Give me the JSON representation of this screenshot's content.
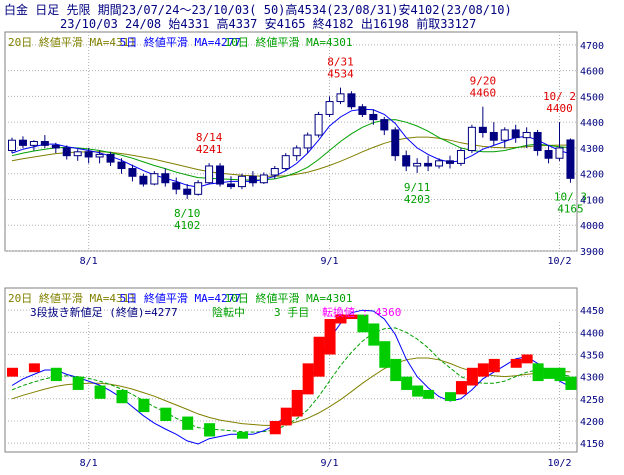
{
  "header": {
    "line1": "白金 日足 先限 期間23/07/24～23/10/03( 50)高4534(23/08/31)安4102(23/08/10)",
    "line2": "23/10/03 24/08 始4331 高4337 安4165 終4182 出16198 前取33127"
  },
  "colors": {
    "background": "#ffffff",
    "text": "#000080",
    "grid": "#b0b0b0",
    "up_candle": "#ffffff",
    "down_candle": "#000080",
    "ma_short": "#0000ff",
    "ma_mid": "#00a000",
    "ma_long": "#808000",
    "annot_high": "#e00000",
    "annot_low": "#00a000",
    "kagi_up": "#ff0000",
    "kagi_down": "#00cc00",
    "turnover": "#ff00ff"
  },
  "chart_data": [
    {
      "type": "candlestick",
      "legend": [
        {
          "label": "20日 終値平滑 MA=4311",
          "color": "#808000"
        },
        {
          "label": "5日 終値平滑 MA=4277",
          "color": "#0000ff"
        },
        {
          "label": "10日 終値平滑 MA=4301",
          "color": "#00a000"
        }
      ],
      "x_ticks": [
        {
          "label": "8/1",
          "index": 7
        },
        {
          "label": "9/1",
          "index": 29
        },
        {
          "label": "10/2",
          "index": 50
        }
      ],
      "ylim": [
        3900,
        4750
      ],
      "y_ticks": [
        3900,
        4000,
        4100,
        4200,
        4300,
        4400,
        4500,
        4600,
        4700
      ],
      "ohlc": [
        [
          4290,
          4340,
          4280,
          4330
        ],
        [
          4330,
          4345,
          4300,
          4310
        ],
        [
          4310,
          4330,
          4290,
          4325
        ],
        [
          4325,
          4350,
          4300,
          4310
        ],
        [
          4310,
          4320,
          4280,
          4300
        ],
        [
          4300,
          4310,
          4255,
          4270
        ],
        [
          4270,
          4295,
          4250,
          4285
        ],
        [
          4285,
          4300,
          4240,
          4265
        ],
        [
          4265,
          4290,
          4240,
          4275
        ],
        [
          4275,
          4285,
          4230,
          4245
        ],
        [
          4245,
          4260,
          4200,
          4220
        ],
        [
          4220,
          4235,
          4170,
          4190
        ],
        [
          4190,
          4200,
          4150,
          4160
        ],
        [
          4160,
          4210,
          4155,
          4200
        ],
        [
          4200,
          4220,
          4150,
          4165
        ],
        [
          4165,
          4185,
          4120,
          4140
        ],
        [
          4140,
          4160,
          4102,
          4120
        ],
        [
          4120,
          4175,
          4115,
          4165
        ],
        [
          4165,
          4241,
          4160,
          4230
        ],
        [
          4230,
          4241,
          4150,
          4160
        ],
        [
          4160,
          4190,
          4140,
          4150
        ],
        [
          4150,
          4200,
          4140,
          4190
        ],
        [
          4190,
          4210,
          4150,
          4165
        ],
        [
          4165,
          4205,
          4160,
          4195
        ],
        [
          4195,
          4230,
          4180,
          4220
        ],
        [
          4220,
          4280,
          4210,
          4270
        ],
        [
          4270,
          4310,
          4250,
          4300
        ],
        [
          4300,
          4360,
          4280,
          4350
        ],
        [
          4350,
          4440,
          4340,
          4430
        ],
        [
          4430,
          4500,
          4420,
          4480
        ],
        [
          4480,
          4534,
          4470,
          4510
        ],
        [
          4510,
          4520,
          4450,
          4460
        ],
        [
          4460,
          4470,
          4420,
          4430
        ],
        [
          4430,
          4450,
          4390,
          4410
        ],
        [
          4410,
          4420,
          4350,
          4370
        ],
        [
          4370,
          4380,
          4250,
          4270
        ],
        [
          4270,
          4290,
          4210,
          4230
        ],
        [
          4230,
          4260,
          4203,
          4240
        ],
        [
          4240,
          4270,
          4210,
          4230
        ],
        [
          4230,
          4260,
          4220,
          4250
        ],
        [
          4250,
          4270,
          4220,
          4240
        ],
        [
          4240,
          4300,
          4230,
          4290
        ],
        [
          4290,
          4390,
          4280,
          4380
        ],
        [
          4380,
          4460,
          4340,
          4360
        ],
        [
          4360,
          4400,
          4310,
          4330
        ],
        [
          4330,
          4380,
          4300,
          4370
        ],
        [
          4370,
          4390,
          4320,
          4340
        ],
        [
          4340,
          4380,
          4300,
          4360
        ],
        [
          4360,
          4370,
          4270,
          4290
        ],
        [
          4290,
          4310,
          4240,
          4260
        ],
        [
          4260,
          4400,
          4250,
          4300
        ],
        [
          4331,
          4337,
          4165,
          4182
        ]
      ],
      "ma5": [
        4280,
        4295,
        4305,
        4315,
        4315,
        4305,
        4298,
        4290,
        4281,
        4268,
        4252,
        4232,
        4212,
        4195,
        4182,
        4170,
        4155,
        4148,
        4160,
        4165,
        4170,
        4170,
        4170,
        4178,
        4190,
        4212,
        4240,
        4280,
        4330,
        4385,
        4420,
        4444,
        4450,
        4448,
        4430,
        4395,
        4340,
        4300,
        4275,
        4255,
        4245,
        4250,
        4270,
        4295,
        4310,
        4325,
        4340,
        4345,
        4330,
        4310,
        4290,
        4277
      ],
      "ma10": [
        4270,
        4280,
        4288,
        4295,
        4300,
        4302,
        4300,
        4296,
        4290,
        4282,
        4272,
        4260,
        4246,
        4232,
        4220,
        4206,
        4195,
        4185,
        4182,
        4180,
        4178,
        4176,
        4175,
        4176,
        4180,
        4190,
        4205,
        4225,
        4255,
        4290,
        4325,
        4355,
        4380,
        4398,
        4408,
        4410,
        4400,
        4385,
        4365,
        4340,
        4320,
        4300,
        4290,
        4285,
        4285,
        4290,
        4300,
        4310,
        4315,
        4310,
        4305,
        4301
      ],
      "ma20": [
        4250,
        4258,
        4265,
        4272,
        4278,
        4282,
        4284,
        4285,
        4285,
        4283,
        4278,
        4272,
        4264,
        4256,
        4246,
        4236,
        4226,
        4216,
        4208,
        4202,
        4198,
        4194,
        4192,
        4190,
        4190,
        4192,
        4198,
        4206,
        4218,
        4232,
        4248,
        4266,
        4285,
        4302,
        4318,
        4330,
        4338,
        4342,
        4342,
        4338,
        4330,
        4320,
        4312,
        4306,
        4302,
        4300,
        4302,
        4305,
        4308,
        4310,
        4311,
        4311
      ]
    },
    {
      "type": "kagi",
      "legend": [
        {
          "label": "20日 終値平滑 MA=4311",
          "color": "#808000"
        },
        {
          "label": "5日 終値平滑 MA=4277",
          "color": "#0000ff"
        },
        {
          "label": "10日 終値平滑 MA=4301",
          "color": "#00a000"
        }
      ],
      "x_ticks": [
        {
          "label": "8/1",
          "index": 7
        },
        {
          "label": "9/1",
          "index": 29
        },
        {
          "label": "10/2",
          "index": 50
        }
      ],
      "ylim": [
        4130,
        4500
      ],
      "y_ticks": [
        4150,
        4200,
        4250,
        4300,
        4350,
        4400,
        4450
      ],
      "blocks": [
        [
          0,
          4300,
          4320,
          "up"
        ],
        [
          2,
          4310,
          4330,
          "up"
        ],
        [
          4,
          4290,
          4320,
          "down"
        ],
        [
          6,
          4270,
          4300,
          "down"
        ],
        [
          8,
          4250,
          4280,
          "down"
        ],
        [
          10,
          4240,
          4270,
          "down"
        ],
        [
          12,
          4220,
          4250,
          "down"
        ],
        [
          14,
          4200,
          4230,
          "down"
        ],
        [
          16,
          4180,
          4210,
          "down"
        ],
        [
          18,
          4165,
          4195,
          "down"
        ],
        [
          21,
          4160,
          4175,
          "down"
        ],
        [
          24,
          4170,
          4200,
          "up"
        ],
        [
          25,
          4190,
          4230,
          "up"
        ],
        [
          26,
          4210,
          4270,
          "up"
        ],
        [
          27,
          4260,
          4330,
          "up"
        ],
        [
          28,
          4300,
          4390,
          "up"
        ],
        [
          29,
          4350,
          4430,
          "up"
        ],
        [
          30,
          4420,
          4440,
          "up"
        ],
        [
          31,
          4430,
          4440,
          "up"
        ],
        [
          32,
          4400,
          4440,
          "down"
        ],
        [
          33,
          4370,
          4420,
          "down"
        ],
        [
          34,
          4320,
          4380,
          "down"
        ],
        [
          35,
          4290,
          4340,
          "down"
        ],
        [
          36,
          4270,
          4300,
          "down"
        ],
        [
          37,
          4255,
          4280,
          "down"
        ],
        [
          38,
          4250,
          4270,
          "down"
        ],
        [
          40,
          4245,
          4265,
          "down"
        ],
        [
          41,
          4260,
          4290,
          "up"
        ],
        [
          42,
          4280,
          4320,
          "up"
        ],
        [
          43,
          4300,
          4330,
          "up"
        ],
        [
          44,
          4310,
          4340,
          "up"
        ],
        [
          46,
          4320,
          4340,
          "up"
        ],
        [
          47,
          4330,
          4350,
          "up"
        ],
        [
          48,
          4290,
          4330,
          "down"
        ],
        [
          49,
          4295,
          4320,
          "down"
        ],
        [
          50,
          4290,
          4320,
          "down"
        ],
        [
          51,
          4270,
          4300,
          "down"
        ]
      ]
    }
  ],
  "top_annotations": [
    {
      "date": "8/31",
      "value": "4534",
      "index": 30,
      "kind": "high"
    },
    {
      "date": "8/14",
      "value": "4241",
      "index": 18,
      "kind": "high"
    },
    {
      "date": "9/20",
      "value": "4460",
      "index": 43,
      "kind": "high"
    },
    {
      "date": "10/ 2",
      "value": "4400",
      "index": 50,
      "kind": "high"
    },
    {
      "date": "8/10",
      "value": "4102",
      "index": 16,
      "kind": "low"
    },
    {
      "date": "9/11",
      "value": "4203",
      "index": 37,
      "kind": "low"
    },
    {
      "date": "10/ 3",
      "value": "4165",
      "index": 51,
      "kind": "low"
    }
  ],
  "kagi_info": {
    "name": "3段抜き新値足 (終値)=4277",
    "state": "陰転中",
    "count": "3 手目",
    "turnover": "転換値 : 4360"
  }
}
